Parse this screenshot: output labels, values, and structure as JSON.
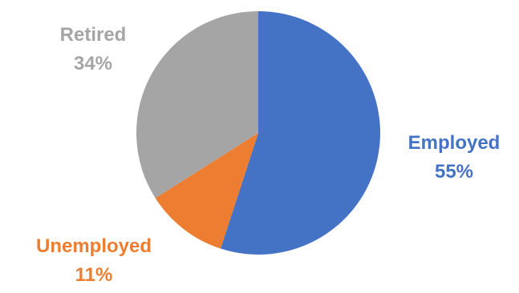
{
  "chart_data": {
    "type": "pie",
    "title": "",
    "start_angle_deg": 0,
    "direction": "clockwise",
    "slices": [
      {
        "label": "Employed",
        "value": 55,
        "display": "55%",
        "color": "#4472C4"
      },
      {
        "label": "Unemployed",
        "value": 11,
        "display": "11%",
        "color": "#ED7D31"
      },
      {
        "label": "Retired",
        "value": 34,
        "display": "34%",
        "color": "#A5A5A5"
      }
    ],
    "legend": "none",
    "data_labels": "outside, category and percentage, colored by slice"
  }
}
